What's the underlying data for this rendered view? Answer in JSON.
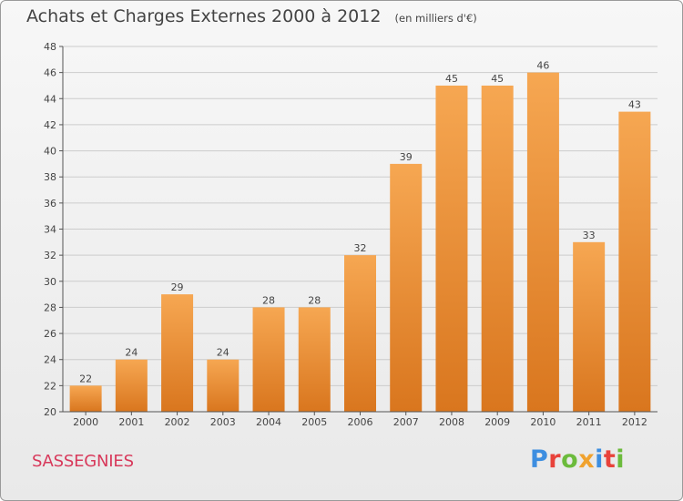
{
  "title": "Achats et Charges Externes 2000 à 2012",
  "subtitle": "(en milliers d'€)",
  "commune": "SASSEGNIES",
  "logo": {
    "text": "Proxiti",
    "letters": [
      "P",
      "r",
      "o",
      "x",
      "i",
      "t",
      "i"
    ],
    "colors": [
      "#3d8ee0",
      "#e8423a",
      "#6cbb3c",
      "#f0a22e",
      "#3d8ee0",
      "#e8423a",
      "#6cbb3c"
    ]
  },
  "colors": {
    "bar_top": "#f6a752",
    "bar_bottom": "#d9761e",
    "axis": "#555555",
    "grid": "#cccccc",
    "text": "#444444"
  },
  "chart_data": {
    "type": "bar",
    "title": "Achats et Charges Externes 2000 à 2012",
    "subtitle": "(en milliers d'€)",
    "categories": [
      "2000",
      "2001",
      "2002",
      "2003",
      "2004",
      "2005",
      "2006",
      "2007",
      "2008",
      "2009",
      "2010",
      "2011",
      "2012"
    ],
    "values": [
      22,
      24,
      29,
      24,
      28,
      28,
      32,
      39,
      45,
      45,
      46,
      33,
      43
    ],
    "xlabel": "",
    "ylabel": "",
    "ylim": [
      20,
      48
    ],
    "yticks": [
      20,
      22,
      24,
      26,
      28,
      30,
      32,
      34,
      36,
      38,
      40,
      42,
      44,
      46,
      48
    ],
    "grid": true,
    "data_labels": true
  }
}
